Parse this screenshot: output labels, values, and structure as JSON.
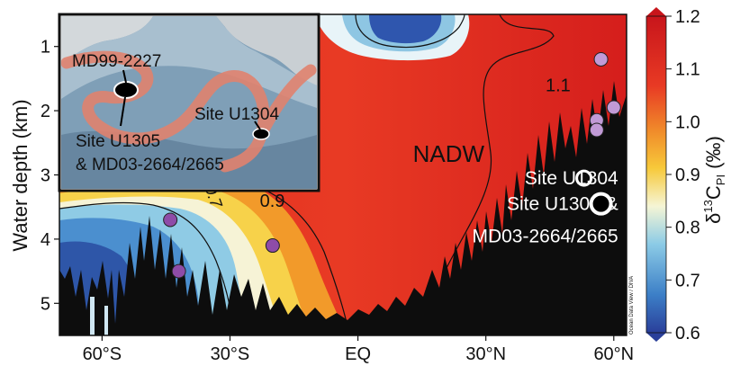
{
  "chart_data": {
    "type": "heatmap",
    "title": "",
    "ylabel": "Water depth (km)",
    "xlabel": "",
    "x_ticks": [
      "60°S",
      "30°S",
      "EQ",
      "30°N",
      "60°N"
    ],
    "x_tick_values": [
      -60,
      -30,
      0,
      30,
      60
    ],
    "y_ticks": [
      "1",
      "2",
      "3",
      "4",
      "5"
    ],
    "y_tick_values": [
      1,
      2,
      3,
      4,
      5
    ],
    "xlim": [
      -70,
      63
    ],
    "ylim": [
      5.5,
      0.5
    ],
    "colorbar": {
      "label": "δ13CPI (‰)",
      "ticks": [
        "1.2",
        "1.1",
        "1.0",
        "0.9",
        "0.8",
        "0.7",
        "0.6"
      ],
      "tick_values": [
        1.2,
        1.1,
        1.0,
        0.9,
        0.8,
        0.7,
        0.6
      ],
      "range": [
        0.6,
        1.2
      ],
      "colors": [
        "#2a3f9a",
        "#3c7fc7",
        "#8ccbe6",
        "#f5f5d5",
        "#f7c93a",
        "#f08a2a",
        "#e83a24",
        "#c8151b"
      ]
    },
    "contour_labels": [
      {
        "text": "1.1",
        "x": 44,
        "y": 1.7
      },
      {
        "text": "0.9",
        "x": -23,
        "y": 3.5
      },
      {
        "text": "0.7",
        "x": -36,
        "y": 3.2
      }
    ],
    "annotations": [
      {
        "text": "NADW",
        "x": 15,
        "y": 2.8
      },
      {
        "text": "Site U1304",
        "x": 45,
        "y": 3.05
      },
      {
        "text": "Site U1305 &",
        "x": 45,
        "y": 3.45
      },
      {
        "text": "MD03-2664/2665",
        "x": 45,
        "y": 3.95
      }
    ],
    "sites_white": [
      {
        "name": "Site U1304",
        "x": 53,
        "y": 3.05
      },
      {
        "name": "Site U1305 & MD03-2664/2665",
        "x": 57,
        "y": 3.45
      }
    ],
    "sites_purple": [
      {
        "x": -44,
        "y": 3.7
      },
      {
        "x": -42,
        "y": 4.5
      },
      {
        "x": -20,
        "y": 4.1
      },
      {
        "x": 57,
        "y": 1.2
      },
      {
        "x": 56,
        "y": 2.15
      },
      {
        "x": 56,
        "y": 2.3
      },
      {
        "x": 60,
        "y": 1.95
      }
    ],
    "inset": {
      "labels": [
        "MD99-2227",
        "Site U1304",
        "Site U1305",
        "& MD03-2664/2665"
      ]
    },
    "credit": "Ocean Data View / DIVA",
    "colors": {
      "seafloor": "#0d0d0d",
      "purple_site": "#8e4ca8",
      "lavender_site": "#c19ad6"
    }
  }
}
